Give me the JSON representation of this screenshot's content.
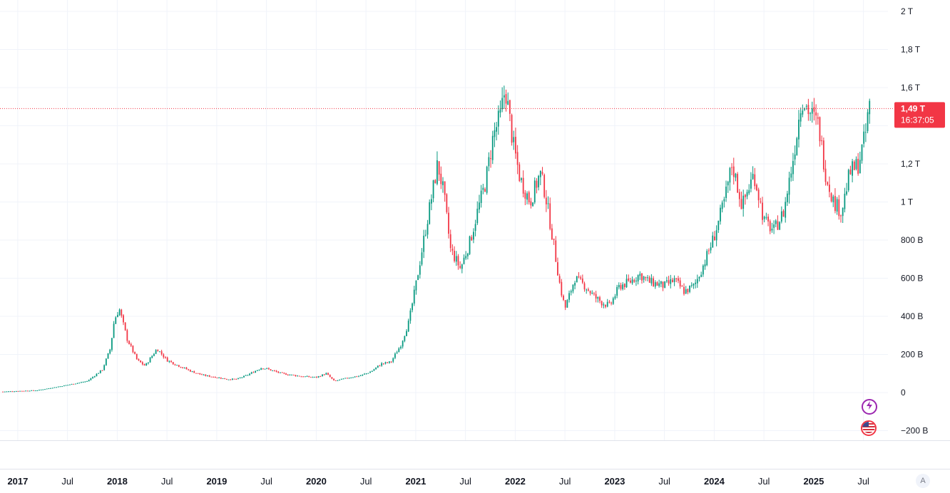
{
  "chart_data": {
    "type": "candlestick",
    "interval": "weekly",
    "y_axis": {
      "ticks": [
        "2 T",
        "1,8 T",
        "1,6 T",
        "1,2 T",
        "1 T",
        "800 B",
        "600 B",
        "400 B",
        "200 B",
        "0",
        "−200 B"
      ],
      "tick_values": [
        2000,
        1800,
        1600,
        1200,
        1000,
        800,
        600,
        400,
        200,
        0,
        -200
      ],
      "unit": "billions",
      "range": [
        -220,
        2050
      ]
    },
    "x_axis": {
      "ticks": [
        "2017",
        "Jul",
        "2018",
        "Jul",
        "2019",
        "Jul",
        "2020",
        "Jul",
        "2021",
        "Jul",
        "2022",
        "Jul",
        "2023",
        "Jul",
        "2024",
        "Jul",
        "2025",
        "Jul"
      ],
      "year_ticks": [
        "2017",
        "2018",
        "2019",
        "2020",
        "2021",
        "2022",
        "2023",
        "2024",
        "2025"
      ],
      "tick_times": [
        2017.0,
        2017.5,
        2018.0,
        2018.5,
        2019.0,
        2019.5,
        2020.0,
        2020.5,
        2021.0,
        2021.5,
        2022.0,
        2022.5,
        2023.0,
        2023.5,
        2024.0,
        2024.5,
        2025.0,
        2025.5
      ],
      "range": [
        2016.85,
        2025.74
      ]
    },
    "grid": true,
    "up_color": "#089981",
    "down_color": "#f23645",
    "current_price": {
      "value": 1490,
      "label": "1,49 T",
      "countdown": "16:37:05",
      "color": "#f23645"
    },
    "anchors": [
      [
        2016.85,
        5
      ],
      [
        2017.2,
        12
      ],
      [
        2017.45,
        35
      ],
      [
        2017.7,
        60
      ],
      [
        2017.85,
        120
      ],
      [
        2017.93,
        230
      ],
      [
        2017.97,
        380
      ],
      [
        2018.02,
        440
      ],
      [
        2018.1,
        280
      ],
      [
        2018.2,
        170
      ],
      [
        2018.28,
        140
      ],
      [
        2018.4,
        230
      ],
      [
        2018.5,
        170
      ],
      [
        2018.62,
        140
      ],
      [
        2018.75,
        110
      ],
      [
        2018.87,
        90
      ],
      [
        2019.0,
        80
      ],
      [
        2019.1,
        70
      ],
      [
        2019.2,
        70
      ],
      [
        2019.3,
        90
      ],
      [
        2019.45,
        130
      ],
      [
        2019.5,
        125
      ],
      [
        2019.65,
        100
      ],
      [
        2019.85,
        85
      ],
      [
        2020.0,
        80
      ],
      [
        2020.1,
        100
      ],
      [
        2020.18,
        60
      ],
      [
        2020.3,
        75
      ],
      [
        2020.45,
        90
      ],
      [
        2020.55,
        110
      ],
      [
        2020.65,
        150
      ],
      [
        2020.75,
        160
      ],
      [
        2020.85,
        250
      ],
      [
        2020.93,
        370
      ],
      [
        2021.0,
        560
      ],
      [
        2021.08,
        800
      ],
      [
        2021.15,
        1000
      ],
      [
        2021.22,
        1200
      ],
      [
        2021.28,
        1050
      ],
      [
        2021.35,
        750
      ],
      [
        2021.45,
        650
      ],
      [
        2021.55,
        800
      ],
      [
        2021.62,
        950
      ],
      [
        2021.7,
        1100
      ],
      [
        2021.78,
        1350
      ],
      [
        2021.85,
        1450
      ],
      [
        2021.9,
        1600
      ],
      [
        2021.98,
        1300
      ],
      [
        2022.05,
        1120
      ],
      [
        2022.15,
        1000
      ],
      [
        2022.25,
        1150
      ],
      [
        2022.3,
        1050
      ],
      [
        2022.38,
        800
      ],
      [
        2022.45,
        560
      ],
      [
        2022.5,
        440
      ],
      [
        2022.6,
        600
      ],
      [
        2022.7,
        560
      ],
      [
        2022.8,
        500
      ],
      [
        2022.88,
        470
      ],
      [
        2022.95,
        455
      ],
      [
        2023.05,
        560
      ],
      [
        2023.15,
        580
      ],
      [
        2023.25,
        620
      ],
      [
        2023.35,
        580
      ],
      [
        2023.5,
        560
      ],
      [
        2023.6,
        590
      ],
      [
        2023.7,
        530
      ],
      [
        2023.8,
        560
      ],
      [
        2023.9,
        680
      ],
      [
        2024.0,
        820
      ],
      [
        2024.1,
        1000
      ],
      [
        2024.18,
        1200
      ],
      [
        2024.28,
        980
      ],
      [
        2024.4,
        1150
      ],
      [
        2024.5,
        900
      ],
      [
        2024.6,
        850
      ],
      [
        2024.7,
        950
      ],
      [
        2024.8,
        1250
      ],
      [
        2024.88,
        1550
      ],
      [
        2024.95,
        1480
      ],
      [
        2025.05,
        1400
      ],
      [
        2025.12,
        1150
      ],
      [
        2025.2,
        1000
      ],
      [
        2025.28,
        950
      ],
      [
        2025.36,
        1150
      ],
      [
        2025.45,
        1200
      ],
      [
        2025.52,
        1350
      ],
      [
        2025.56,
        1520
      ],
      [
        2025.58,
        1490
      ]
    ]
  },
  "badges": {
    "events_icon": "lightning-icon",
    "country_icon": "us-flag-icon"
  },
  "controls": {
    "auto_scale_label": "A"
  }
}
